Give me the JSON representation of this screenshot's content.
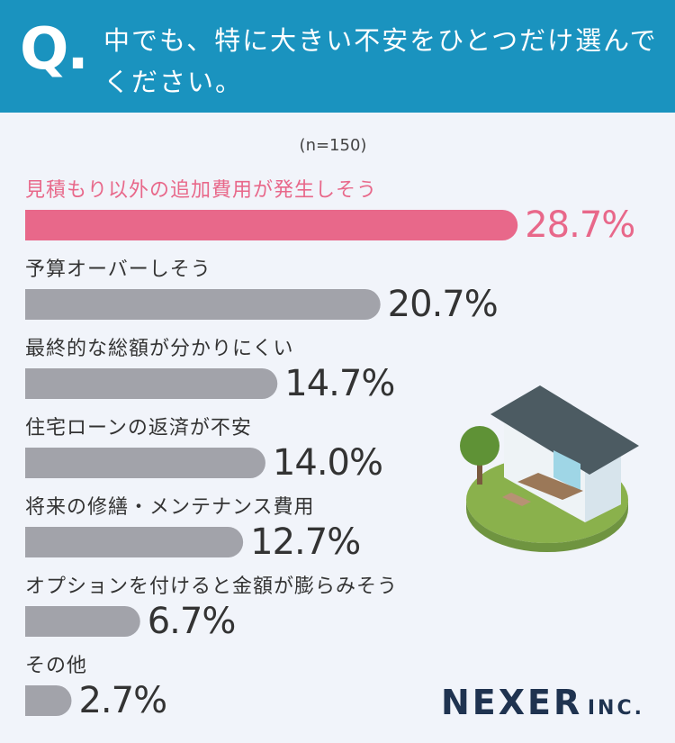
{
  "question_marker": "Q.",
  "chart_data": {
    "type": "bar",
    "orientation": "horizontal",
    "title": "中でも、特に大きい不安をひとつだけ選んでください。",
    "subtitle": "(n=150)",
    "categories": [
      "見積もり以外の追加費用が発生しそう",
      "予算オーバーしそう",
      "最終的な総額が分かりにくい",
      "住宅ローンの返済が不安",
      "将来の修繕・メンテナンス費用",
      "オプションを付けると金額が膨らみそう",
      "その他"
    ],
    "values": [
      28.7,
      20.7,
      14.7,
      14.0,
      12.7,
      6.7,
      2.7
    ],
    "value_labels": [
      "28.7%",
      "20.7%",
      "14.7%",
      "14.0%",
      "12.7%",
      "6.7%",
      "2.7%"
    ],
    "bar_colors": [
      "#e8688a",
      "#a2a3aa",
      "#a2a3aa",
      "#a2a3aa",
      "#a2a3aa",
      "#a2a3aa",
      "#a2a3aa"
    ],
    "label_colors": [
      "#e8688a",
      "#333333",
      "#333333",
      "#333333",
      "#333333",
      "#333333",
      "#333333"
    ],
    "xlim": [
      0,
      30
    ]
  },
  "logo": {
    "name": "NEXER",
    "suffix": "INC."
  }
}
